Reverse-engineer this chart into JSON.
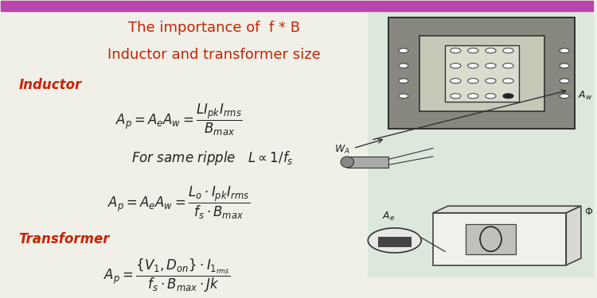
{
  "title_line1": "The importance of  f * B",
  "title_line2": "Inductor and transformer size",
  "title_color": "#cc2200",
  "background_color": "#f0f0e8",
  "right_panel_color": "#dde8dd",
  "border_top_color": "#bb44aa",
  "label_color": "#cc2200",
  "formula_color": "#222222",
  "eq1_label": "Inductor",
  "eq4_label": "Transformer",
  "figsize": [
    7.5,
    3.75
  ],
  "dpi": 100
}
